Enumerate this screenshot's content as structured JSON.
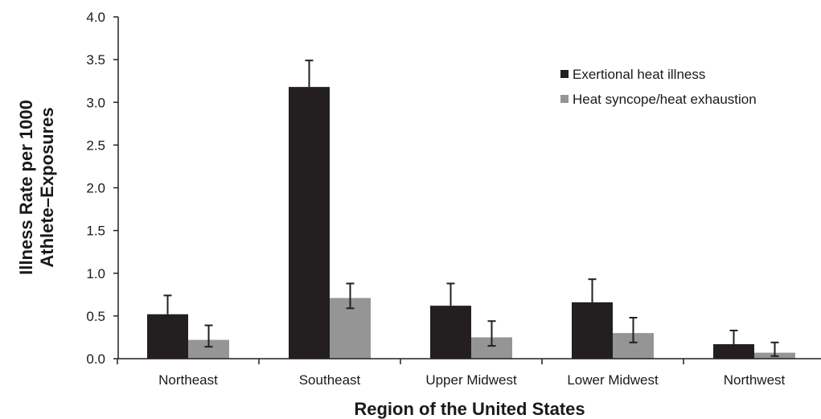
{
  "chart_data": {
    "type": "bar",
    "title": "",
    "xlabel": "Region of the United States",
    "ylabel_lines": [
      "Illness Rate per 1000",
      "Athlete–Exposures"
    ],
    "categories": [
      "Northeast",
      "Southeast",
      "Upper Midwest",
      "Lower Midwest",
      "Northwest"
    ],
    "yticks": [
      "0.0",
      "0.5",
      "1.0",
      "1.5",
      "2.0",
      "2.5",
      "3.0",
      "3.5",
      "4.0"
    ],
    "ylim": [
      0,
      4
    ],
    "grid": false,
    "legend_position": "top-right",
    "series": [
      {
        "name": "Exertional heat illness",
        "color": "#231f20",
        "values": [
          0.52,
          3.18,
          0.62,
          0.66,
          0.17
        ],
        "error_upper": [
          0.74,
          3.49,
          0.88,
          0.93,
          0.33
        ]
      },
      {
        "name": "Heat syncope/heat exhaustion",
        "color": "#959595",
        "values": [
          0.22,
          0.71,
          0.25,
          0.3,
          0.07
        ],
        "error_upper": [
          0.39,
          0.88,
          0.44,
          0.48,
          0.19
        ],
        "error_lower": [
          0.14,
          0.59,
          0.15,
          0.19,
          0.03
        ]
      }
    ]
  }
}
